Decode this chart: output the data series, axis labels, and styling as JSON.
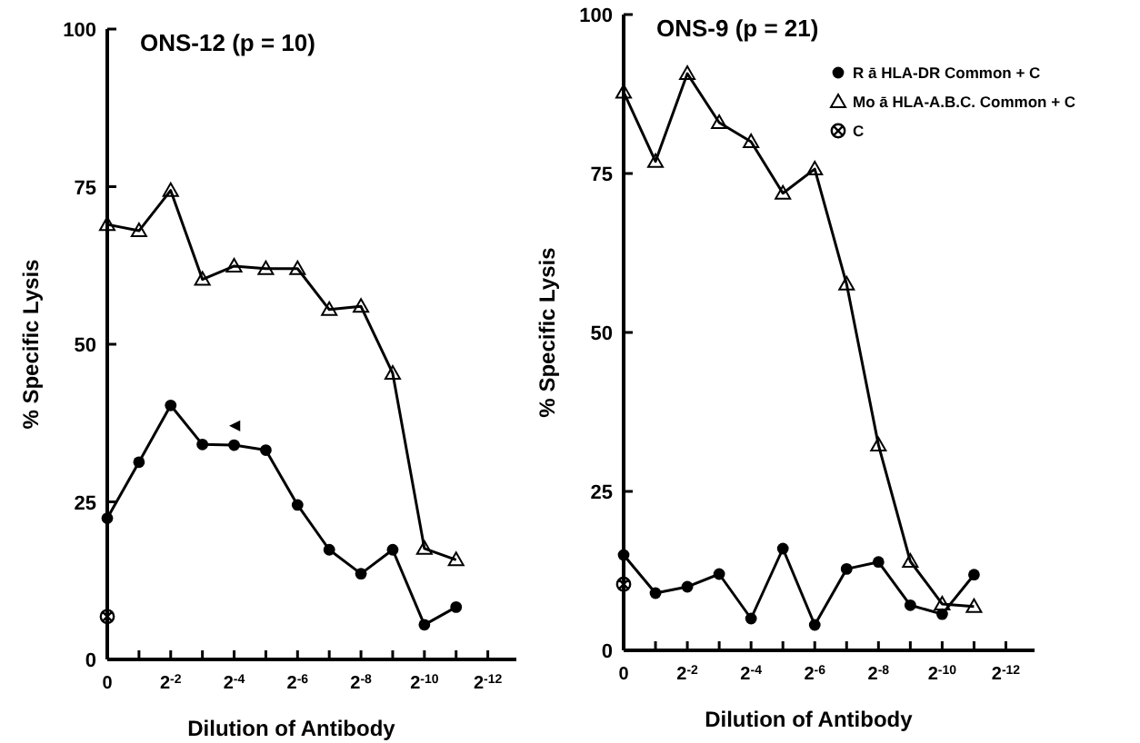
{
  "chart_data": [
    {
      "type": "line",
      "title": "ONS-12 (p = 10)",
      "xlabel": "Dilution of Antibody",
      "ylabel": "% Specific Lysis",
      "categories": [
        "0",
        null,
        "2$^{-2}$",
        null,
        "2$^{-4}$",
        null,
        "2$^{-6}$",
        null,
        "2$^{-8}$",
        null,
        "2$^{-10}$",
        null,
        "2$^{-12}$"
      ],
      "series": [
        {
          "color": "#000000",
          "marker": "circle",
          "values": [
            22.4,
            31.3,
            40.3,
            34.1,
            34,
            33.2,
            24.5,
            17.4,
            13.6,
            17.4,
            5.5,
            8.3,
            null
          ]
        },
        {
          "color": "#000000",
          "marker": "triangle",
          "values": [
            69,
            68,
            74.4,
            60.3,
            62.4,
            62,
            62,
            55.5,
            56,
            45.4,
            17.6,
            15.8,
            null
          ]
        },
        {
          "type": "scatter",
          "color": "#000000",
          "marker": "cross",
          "x": [
            "0"
          ],
          "values": [
            6.8
          ]
        }
      ],
      "annotations": [
        "◀"
      ],
      "ylim": [
        0,
        100
      ],
      "yticks": [
        0,
        25,
        50,
        75,
        100
      ],
      "grid": false,
      "legend": false
    },
    {
      "type": "line",
      "title": "ONS-9 (p = 21)",
      "xlabel": "Dilution of Antibody",
      "ylabel": "% Specific Lysis",
      "categories": [
        "0",
        null,
        "2$^{-2}$",
        null,
        "2$^{-4}$",
        null,
        "2$^{-6}$",
        null,
        "2$^{-8}$",
        null,
        "2$^{-10}$",
        null,
        "2$^{-12}$"
      ],
      "series": [
        {
          "name": "R ā HLA-DR Common + C",
          "color": "#000000",
          "marker": "circle",
          "values": [
            15,
            9,
            10,
            12,
            5,
            16,
            4,
            12.8,
            13.9,
            7.1,
            5.7,
            11.9,
            null
          ]
        },
        {
          "name": "Mo ā HLA-A.B.C. Common + C",
          "color": "#000000",
          "marker": "triangle",
          "values": [
            87.8,
            76.9,
            90.7,
            83,
            80,
            71.9,
            75.7,
            57.6,
            32.3,
            14,
            7.3,
            6.9,
            null
          ]
        },
        {
          "name": "C",
          "type": "scatter",
          "color": "#000000",
          "marker": "cross",
          "x": [
            "0"
          ],
          "values": [
            10.4
          ]
        }
      ],
      "ylim": [
        0,
        100
      ],
      "yticks": [
        0,
        25,
        50,
        75,
        100
      ],
      "grid": false,
      "legend": "top right"
    }
  ]
}
